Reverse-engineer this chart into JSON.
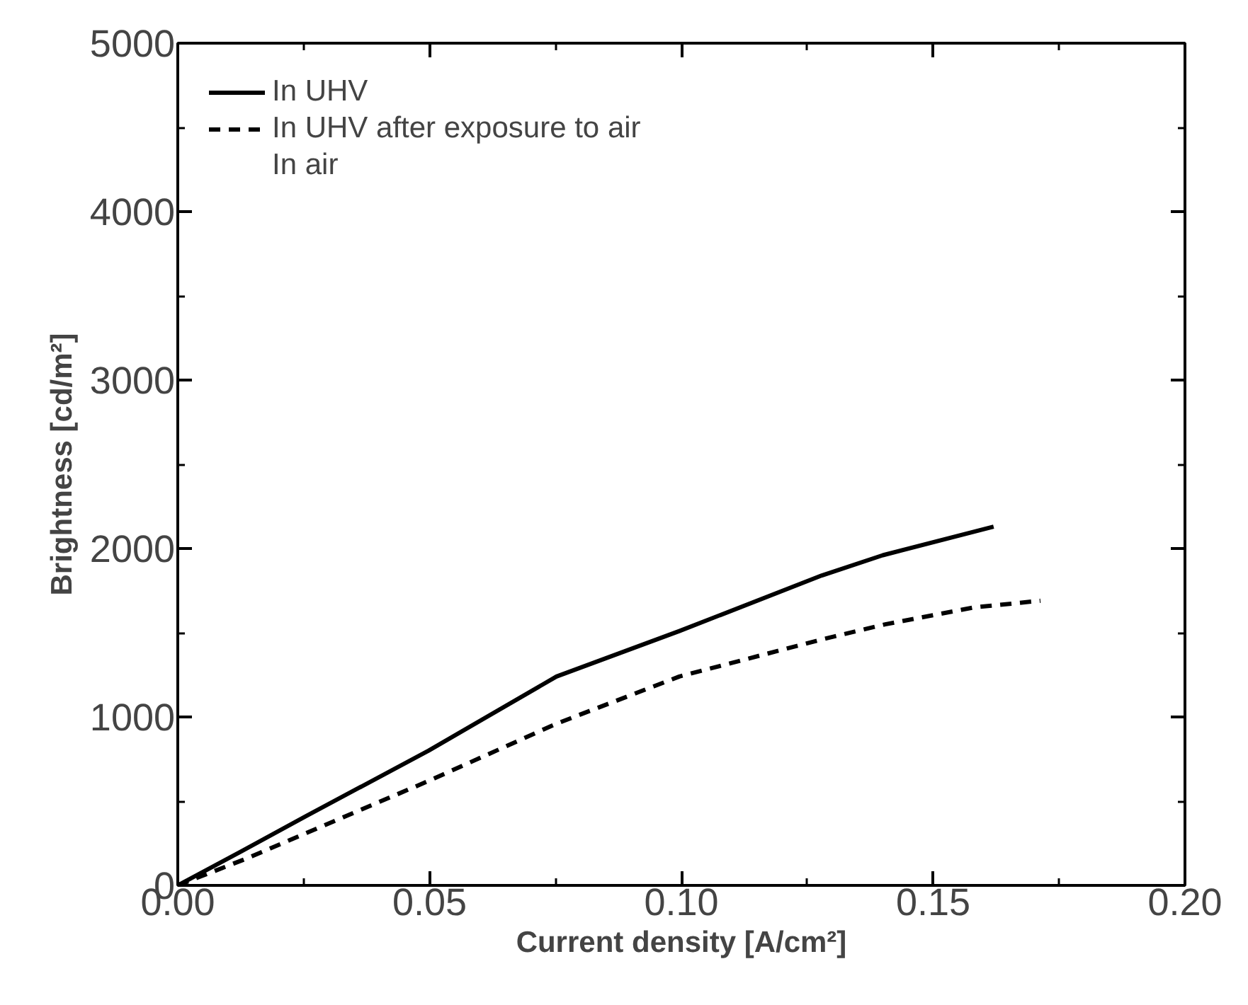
{
  "chart_data": {
    "type": "line",
    "xlabel": "Current density [A/cm²]",
    "ylabel": "Brightness [cd/m²]",
    "xlim": [
      0,
      0.2
    ],
    "ylim": [
      0,
      5000
    ],
    "xticks": [
      {
        "value": 0,
        "label": "0.00"
      },
      {
        "value": 0.05,
        "label": "0.05"
      },
      {
        "value": 0.1,
        "label": "0.10"
      },
      {
        "value": 0.15,
        "label": "0.15"
      },
      {
        "value": 0.2,
        "label": "0.20"
      }
    ],
    "yticks": [
      0,
      1000,
      2000,
      3000,
      4000,
      5000
    ],
    "grid": false,
    "legend": "top left",
    "series": [
      {
        "name": "In UHV",
        "color": "#000000",
        "line_style": "solid",
        "x": [
          0,
          0.0125,
          0.0254,
          0.0498,
          0.0752,
          0.0996,
          0.1279,
          0.14,
          0.162
        ],
        "values": [
          0,
          200,
          410,
          800,
          1240,
          1510,
          1840,
          1960,
          2130
        ]
      },
      {
        "name": "In UHV after exposure to air",
        "color": "#000000",
        "line_style": "dashed",
        "x": [
          0,
          0.0137,
          0.0498,
          0.0752,
          0.0996,
          0.1279,
          0.1405,
          0.158,
          0.1713
        ],
        "values": [
          0,
          160,
          620,
          960,
          1240,
          1460,
          1550,
          1650,
          1690
        ]
      },
      {
        "name": "In air"
      }
    ]
  }
}
